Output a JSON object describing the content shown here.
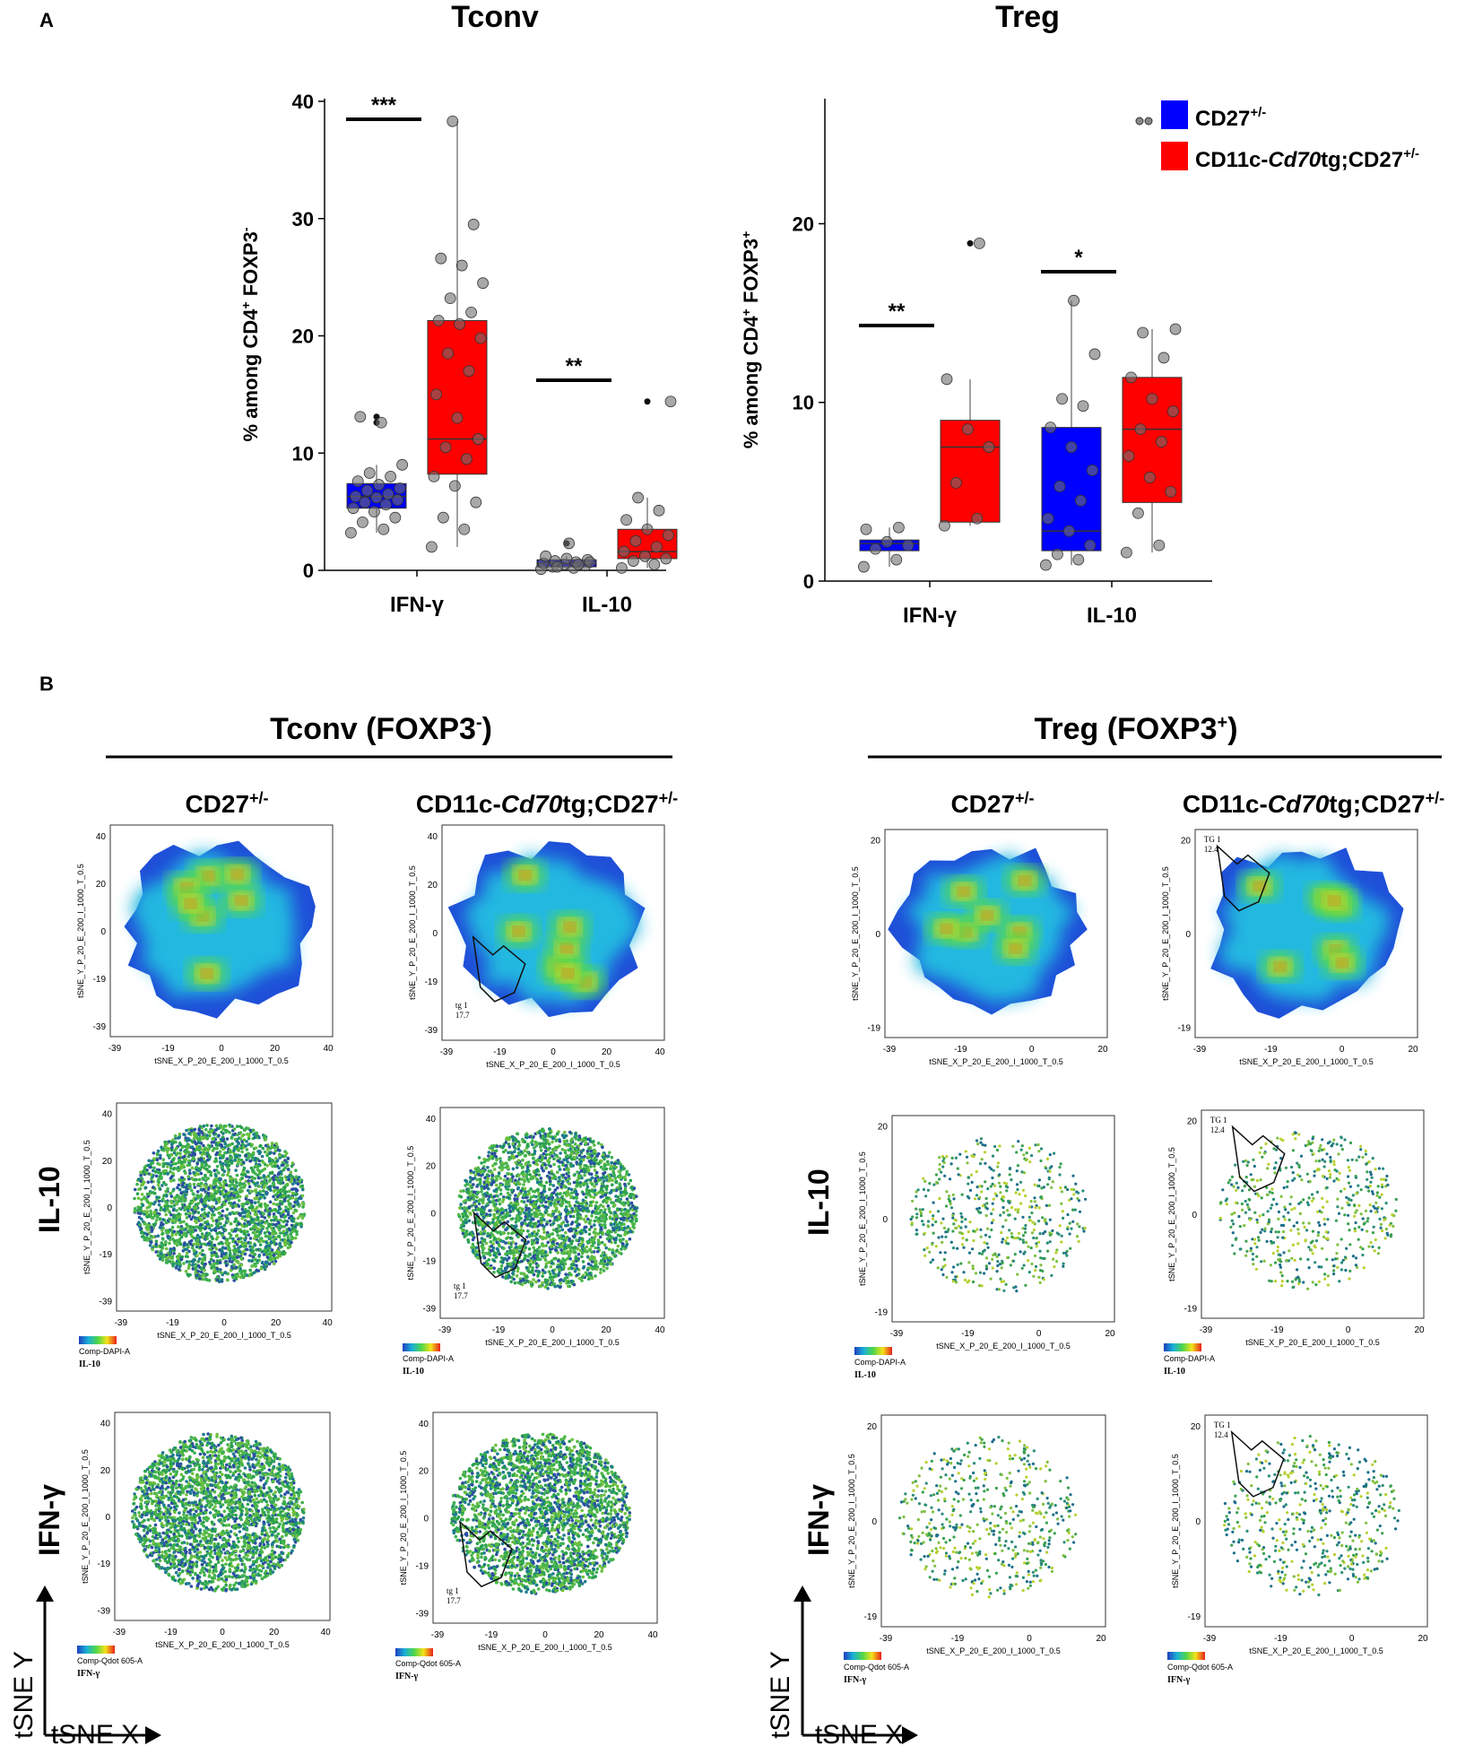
{
  "panelA": {
    "label": "A",
    "legend": {
      "wt": {
        "base": "CD27",
        "sup": "+/-",
        "color": "#0000ff"
      },
      "tg": {
        "pre": "CD11c-",
        "ital": "Cd70",
        "mid": "tg;CD27",
        "sup": "+/-",
        "color": "#ff0000"
      }
    }
  },
  "panelB": {
    "label": "B",
    "tconv": {
      "title": "Tconv (FOXP3",
      "sup": "-",
      "close": ")"
    },
    "treg": {
      "title": "Treg (FOXP3",
      "sup": "+",
      "close": ")"
    },
    "col_wt": {
      "base": "CD27",
      "sup": "+/-"
    },
    "col_tg": {
      "pre": "CD11c-",
      "ital": "Cd70",
      "mid": "tg;CD27",
      "sup": "+/-"
    },
    "row_il10": "IL-10",
    "row_ifng": "IFN-γ",
    "axis_x_label": "tSNE_X_P_20_E_200_I_1000_T_0.5",
    "axis_y_label": "tSNE_Y_P_20_E_200_I_1000_T_0.5",
    "tconv_ticks": [
      "-39",
      "-19",
      "0",
      "20",
      "40"
    ],
    "treg_xticks": [
      "-39",
      "-19",
      "0",
      "20"
    ],
    "treg_yticks": [
      "20",
      "0",
      "-19"
    ],
    "gate_tconv": {
      "name": "tg 1",
      "value": "17.7"
    },
    "gate_treg": {
      "name": "TG 1",
      "value": "12.4"
    },
    "scale_dapi": "Comp-DAPI-A",
    "scale_qdot": "Comp-Qdot 605-A",
    "scale_il10": "IL-10",
    "scale_ifng": "IFN-γ",
    "arrow_x": "tSNE X",
    "arrow_y": "tSNE Y"
  },
  "chart_data": [
    {
      "type": "box",
      "title": "Tconv",
      "ylabel_pre": "% among CD4",
      "ylabel_sup1": "+",
      "ylabel_mid": " FOXP3",
      "ylabel_sup2": "-",
      "ylim": [
        0,
        40
      ],
      "yticks": [
        "0",
        "10",
        "20",
        "30",
        "40"
      ],
      "categories": [
        "IFN-γ",
        "IL-10"
      ],
      "series": [
        {
          "name": "CD27+/-",
          "boxes": [
            {
              "q1": 5.3,
              "median": 6.3,
              "q3": 7.4,
              "min": 3.2,
              "max": 9.0,
              "outliers": [
                12.6,
                13.1
              ],
              "points": [
                3.2,
                3.5,
                4.1,
                4.5,
                5.0,
                5.3,
                5.6,
                5.8,
                6.0,
                6.2,
                6.3,
                6.5,
                6.8,
                7.0,
                7.3,
                7.6,
                8.0,
                8.3,
                9.0,
                12.6,
                13.1
              ]
            },
            {
              "q1": 0.3,
              "median": 0.6,
              "q3": 0.9,
              "min": 0.1,
              "max": 1.2,
              "outliers": [
                2.3
              ],
              "points": [
                0.1,
                0.2,
                0.3,
                0.4,
                0.5,
                0.6,
                0.7,
                0.8,
                0.9,
                1.0,
                1.2,
                0.5,
                0.3,
                0.7,
                2.3
              ]
            }
          ]
        },
        {
          "name": "CD11c-Cd70tg;CD27+/-",
          "boxes": [
            {
              "q1": 8.2,
              "median": 11.2,
              "q3": 21.3,
              "min": 2.0,
              "max": 38.3,
              "outliers": [],
              "points": [
                2.0,
                3.5,
                4.5,
                5.8,
                7.2,
                8.0,
                9.5,
                10.5,
                11.2,
                13.0,
                15.0,
                17.0,
                18.5,
                19.8,
                21.0,
                21.3,
                22.0,
                23.2,
                24.5,
                26.0,
                26.6,
                29.5,
                38.3
              ]
            },
            {
              "q1": 1.0,
              "median": 1.6,
              "q3": 3.5,
              "min": 0.2,
              "max": 6.2,
              "outliers": [
                14.4
              ],
              "points": [
                0.2,
                0.5,
                0.8,
                1.0,
                1.2,
                1.6,
                2.0,
                2.5,
                3.0,
                3.5,
                4.3,
                5.1,
                6.2,
                14.4
              ]
            }
          ]
        }
      ],
      "significance": [
        "***",
        "**"
      ]
    },
    {
      "type": "box",
      "title": "Treg",
      "ylabel_pre": "% among CD4",
      "ylabel_sup1": "+",
      "ylabel_mid": " FOXP3",
      "ylabel_sup2": "+",
      "ylim": [
        0,
        27
      ],
      "yticks": [
        "0",
        "10",
        "20"
      ],
      "categories": [
        "IFN-γ",
        "IL-10"
      ],
      "series": [
        {
          "name": "CD27+/-",
          "boxes": [
            {
              "q1": 1.7,
              "median": 2.1,
              "q3": 2.3,
              "min": 0.8,
              "max": 3.0,
              "outliers": [],
              "points": [
                0.8,
                1.2,
                1.8,
                2.0,
                2.2,
                2.9,
                3.0
              ]
            },
            {
              "q1": 1.7,
              "median": 2.8,
              "q3": 8.6,
              "min": 0.9,
              "max": 15.7,
              "outliers": [],
              "points": [
                0.9,
                1.2,
                1.5,
                2.0,
                2.8,
                3.5,
                4.5,
                5.3,
                6.2,
                7.5,
                8.6,
                9.8,
                10.2,
                12.7,
                15.7
              ]
            }
          ]
        },
        {
          "name": "CD11c-Cd70tg;CD27+/-",
          "boxes": [
            {
              "q1": 3.3,
              "median": 7.5,
              "q3": 9.0,
              "min": 3.1,
              "max": 11.3,
              "outliers": [
                18.9
              ],
              "points": [
                3.1,
                3.5,
                5.5,
                7.5,
                8.5,
                11.3,
                18.9
              ]
            },
            {
              "q1": 4.4,
              "median": 8.5,
              "q3": 11.4,
              "min": 1.6,
              "max": 14.1,
              "outliers": [],
              "points": [
                1.6,
                2.0,
                3.8,
                5.0,
                5.8,
                7.0,
                7.8,
                8.5,
                9.5,
                10.2,
                11.4,
                12.5,
                13.9,
                14.1
              ]
            }
          ]
        }
      ],
      "significance": [
        "**",
        "*"
      ]
    }
  ]
}
